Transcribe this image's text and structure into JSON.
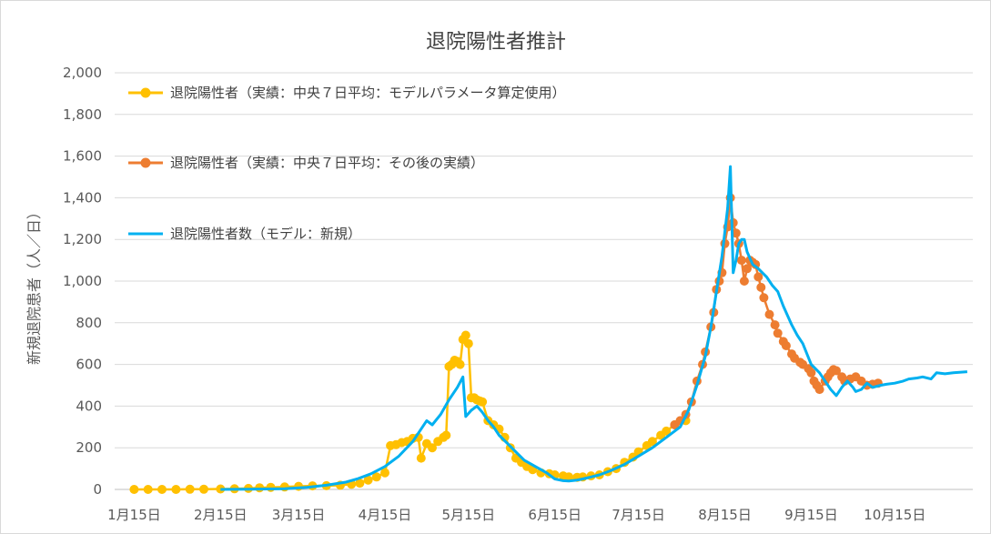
{
  "chart_data": {
    "type": "line",
    "title": "退院陽性者推計",
    "ylabel": "新規退院患者（人／日）",
    "xlabel": "",
    "ylim": [
      0,
      2000
    ],
    "xlim": [
      "1/8",
      "11/12"
    ],
    "yticks": [
      {
        "value": 0,
        "label": "0"
      },
      {
        "value": 200,
        "label": "200"
      },
      {
        "value": 400,
        "label": "400"
      },
      {
        "value": 600,
        "label": "600"
      },
      {
        "value": 800,
        "label": "800"
      },
      {
        "value": 1000,
        "label": "1,000"
      },
      {
        "value": 1200,
        "label": "1,200"
      },
      {
        "value": 1400,
        "label": "1,400"
      },
      {
        "value": 1600,
        "label": "1,600"
      },
      {
        "value": 1800,
        "label": "1,800"
      },
      {
        "value": 2000,
        "label": "2,000"
      }
    ],
    "xticks": [
      {
        "date": "1/15",
        "label": "1月15日"
      },
      {
        "date": "2/15",
        "label": "2月15日"
      },
      {
        "date": "3/15",
        "label": "3月15日"
      },
      {
        "date": "4/15",
        "label": "4月15日"
      },
      {
        "date": "5/15",
        "label": "5月15日"
      },
      {
        "date": "6/15",
        "label": "6月15日"
      },
      {
        "date": "7/15",
        "label": "7月15日"
      },
      {
        "date": "8/15",
        "label": "8月15日"
      },
      {
        "date": "9/15",
        "label": "9月15日"
      },
      {
        "date": "10/15",
        "label": "10月15日"
      }
    ],
    "grid": true,
    "legend": "top-left",
    "series": [
      {
        "name": "退院陽性者（実績：中央７日平均：モデルパラメータ算定使用）",
        "color": "#FFC000",
        "style": "line-markers",
        "points": [
          [
            "1/15",
            0
          ],
          [
            "1/20",
            0
          ],
          [
            "1/25",
            0
          ],
          [
            "1/30",
            0
          ],
          [
            "2/4",
            1
          ],
          [
            "2/9",
            1
          ],
          [
            "2/15",
            2
          ],
          [
            "2/20",
            3
          ],
          [
            "2/25",
            5
          ],
          [
            "3/1",
            8
          ],
          [
            "3/5",
            10
          ],
          [
            "3/10",
            12
          ],
          [
            "3/15",
            15
          ],
          [
            "3/20",
            17
          ],
          [
            "3/25",
            18
          ],
          [
            "3/30",
            20
          ],
          [
            "4/3",
            25
          ],
          [
            "4/6",
            30
          ],
          [
            "4/9",
            45
          ],
          [
            "4/12",
            60
          ],
          [
            "4/15",
            80
          ],
          [
            "4/17",
            210
          ],
          [
            "4/19",
            215
          ],
          [
            "4/21",
            225
          ],
          [
            "4/23",
            230
          ],
          [
            "4/25",
            245
          ],
          [
            "4/27",
            250
          ],
          [
            "4/28",
            150
          ],
          [
            "4/30",
            220
          ],
          [
            "5/2",
            200
          ],
          [
            "5/4",
            230
          ],
          [
            "5/6",
            250
          ],
          [
            "5/7",
            260
          ],
          [
            "5/8",
            590
          ],
          [
            "5/9",
            600
          ],
          [
            "5/10",
            620
          ],
          [
            "5/11",
            615
          ],
          [
            "5/12",
            600
          ],
          [
            "5/13",
            720
          ],
          [
            "5/14",
            740
          ],
          [
            "5/15",
            700
          ],
          [
            "5/16",
            440
          ],
          [
            "5/17",
            440
          ],
          [
            "5/18",
            430
          ],
          [
            "5/19",
            425
          ],
          [
            "5/20",
            420
          ],
          [
            "5/22",
            330
          ],
          [
            "5/24",
            310
          ],
          [
            "5/26",
            290
          ],
          [
            "5/28",
            250
          ],
          [
            "5/30",
            200
          ],
          [
            "6/1",
            150
          ],
          [
            "6/3",
            130
          ],
          [
            "6/5",
            110
          ],
          [
            "6/7",
            95
          ],
          [
            "6/10",
            80
          ],
          [
            "6/13",
            75
          ],
          [
            "6/15",
            70
          ],
          [
            "6/18",
            65
          ],
          [
            "6/20",
            60
          ],
          [
            "6/23",
            58
          ],
          [
            "6/25",
            60
          ],
          [
            "6/28",
            65
          ],
          [
            "7/1",
            70
          ],
          [
            "7/4",
            85
          ],
          [
            "7/7",
            100
          ],
          [
            "7/10",
            130
          ],
          [
            "7/13",
            155
          ],
          [
            "7/15",
            180
          ],
          [
            "7/18",
            210
          ],
          [
            "7/20",
            230
          ],
          [
            "7/23",
            260
          ],
          [
            "7/25",
            280
          ],
          [
            "7/28",
            310
          ],
          [
            "8/1",
            330
          ]
        ]
      },
      {
        "name": "退院陽性者（実績：中央７日平均：その後の実績）",
        "color": "#ED7D31",
        "style": "line-markers",
        "points": [
          [
            "7/28",
            310
          ],
          [
            "7/30",
            330
          ],
          [
            "8/1",
            360
          ],
          [
            "8/3",
            420
          ],
          [
            "8/5",
            520
          ],
          [
            "8/7",
            600
          ],
          [
            "8/8",
            660
          ],
          [
            "8/10",
            780
          ],
          [
            "8/11",
            850
          ],
          [
            "8/12",
            960
          ],
          [
            "8/13",
            1000
          ],
          [
            "8/14",
            1040
          ],
          [
            "8/15",
            1180
          ],
          [
            "8/16",
            1260
          ],
          [
            "8/17",
            1400
          ],
          [
            "8/18",
            1280
          ],
          [
            "8/19",
            1230
          ],
          [
            "8/20",
            1180
          ],
          [
            "8/21",
            1100
          ],
          [
            "8/22",
            1000
          ],
          [
            "8/23",
            1060
          ],
          [
            "8/24",
            1100
          ],
          [
            "8/25",
            1090
          ],
          [
            "8/26",
            1080
          ],
          [
            "8/27",
            1020
          ],
          [
            "8/28",
            970
          ],
          [
            "8/29",
            920
          ],
          [
            "8/31",
            840
          ],
          [
            "9/2",
            790
          ],
          [
            "9/3",
            750
          ],
          [
            "9/5",
            710
          ],
          [
            "9/6",
            690
          ],
          [
            "9/8",
            650
          ],
          [
            "9/9",
            630
          ],
          [
            "9/11",
            610
          ],
          [
            "9/12",
            600
          ],
          [
            "9/14",
            580
          ],
          [
            "9/15",
            560
          ],
          [
            "9/16",
            520
          ],
          [
            "9/17",
            500
          ],
          [
            "9/18",
            480
          ],
          [
            "9/20",
            520
          ],
          [
            "9/21",
            540
          ],
          [
            "9/22",
            560
          ],
          [
            "9/23",
            575
          ],
          [
            "9/24",
            570
          ],
          [
            "9/26",
            540
          ],
          [
            "9/27",
            520
          ],
          [
            "9/29",
            530
          ],
          [
            "10/1",
            540
          ],
          [
            "10/3",
            520
          ],
          [
            "10/5",
            500
          ],
          [
            "10/7",
            505
          ],
          [
            "10/9",
            510
          ]
        ]
      },
      {
        "name": "退院陽性者数（モデル：新規）",
        "color": "#00B0F0",
        "style": "line",
        "points": [
          [
            "2/15",
            0
          ],
          [
            "2/25",
            1
          ],
          [
            "3/10",
            3
          ],
          [
            "3/18",
            10
          ],
          [
            "3/25",
            20
          ],
          [
            "4/1",
            35
          ],
          [
            "4/5",
            50
          ],
          [
            "4/10",
            75
          ],
          [
            "4/15",
            110
          ],
          [
            "4/20",
            160
          ],
          [
            "4/25",
            230
          ],
          [
            "4/28",
            290
          ],
          [
            "4/30",
            330
          ],
          [
            "5/2",
            310
          ],
          [
            "5/5",
            360
          ],
          [
            "5/8",
            430
          ],
          [
            "5/11",
            490
          ],
          [
            "5/13",
            540
          ],
          [
            "5/14",
            350
          ],
          [
            "5/16",
            380
          ],
          [
            "5/18",
            400
          ],
          [
            "5/20",
            370
          ],
          [
            "5/22",
            330
          ],
          [
            "5/24",
            300
          ],
          [
            "5/26",
            260
          ],
          [
            "5/29",
            220
          ],
          [
            "6/1",
            180
          ],
          [
            "6/4",
            140
          ],
          [
            "6/8",
            110
          ],
          [
            "6/12",
            80
          ],
          [
            "6/15",
            50
          ],
          [
            "6/18",
            42
          ],
          [
            "6/20",
            40
          ],
          [
            "6/23",
            45
          ],
          [
            "6/25",
            50
          ],
          [
            "6/28",
            60
          ],
          [
            "7/1",
            70
          ],
          [
            "7/5",
            90
          ],
          [
            "7/10",
            120
          ],
          [
            "7/15",
            160
          ],
          [
            "7/20",
            200
          ],
          [
            "7/25",
            250
          ],
          [
            "7/30",
            300
          ],
          [
            "8/2",
            380
          ],
          [
            "8/5",
            500
          ],
          [
            "8/8",
            640
          ],
          [
            "8/10",
            780
          ],
          [
            "8/12",
            950
          ],
          [
            "8/14",
            1120
          ],
          [
            "8/16",
            1350
          ],
          [
            "8/17",
            1550
          ],
          [
            "8/18",
            1040
          ],
          [
            "8/19",
            1100
          ],
          [
            "8/20",
            1180
          ],
          [
            "8/21",
            1200
          ],
          [
            "8/22",
            1200
          ],
          [
            "8/23",
            1140
          ],
          [
            "8/25",
            1080
          ],
          [
            "8/27",
            1060
          ],
          [
            "8/30",
            1020
          ],
          [
            "9/1",
            980
          ],
          [
            "9/3",
            950
          ],
          [
            "9/5",
            880
          ],
          [
            "9/8",
            790
          ],
          [
            "9/10",
            740
          ],
          [
            "9/12",
            700
          ],
          [
            "9/15",
            600
          ],
          [
            "9/18",
            560
          ],
          [
            "9/20",
            520
          ],
          [
            "9/22",
            480
          ],
          [
            "9/24",
            450
          ],
          [
            "9/26",
            490
          ],
          [
            "9/28",
            520
          ],
          [
            "9/30",
            490
          ],
          [
            "10/1",
            470
          ],
          [
            "10/3",
            480
          ],
          [
            "10/5",
            510
          ],
          [
            "10/7",
            490
          ],
          [
            "10/10",
            500
          ],
          [
            "10/12",
            505
          ],
          [
            "10/15",
            510
          ],
          [
            "10/18",
            520
          ],
          [
            "10/20",
            530
          ],
          [
            "10/23",
            535
          ],
          [
            "10/25",
            540
          ],
          [
            "10/28",
            530
          ],
          [
            "10/30",
            560
          ],
          [
            "11/2",
            555
          ],
          [
            "11/5",
            560
          ],
          [
            "11/10",
            565
          ]
        ]
      }
    ]
  }
}
